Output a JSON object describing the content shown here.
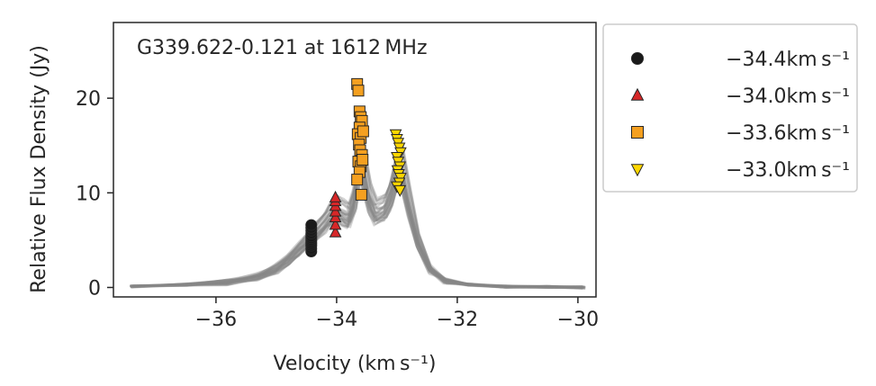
{
  "chart_data": {
    "type": "scatter",
    "title": "G339.622-0.121 at 1612 MHz",
    "xlabel": "Velocity (km s⁻¹)",
    "ylabel": "Relative Flux Density (Jy)",
    "xlim": [
      -37.7,
      -29.7
    ],
    "ylim": [
      -1.0,
      28.0
    ],
    "xticks": [
      -36,
      -34,
      -32,
      -30
    ],
    "xtick_labels": [
      "−36",
      "−34",
      "−32",
      "−30"
    ],
    "yticks": [
      0,
      10,
      20
    ],
    "ytick_labels": [
      "0",
      "10",
      "20"
    ],
    "grid": false,
    "legend_position": "outside-right",
    "spectra": {
      "color": "#888888",
      "description_count": 30,
      "velocity": [
        -37.4,
        -36.5,
        -35.8,
        -35.3,
        -35.0,
        -34.8,
        -34.6,
        -34.4,
        -34.2,
        -34.1,
        -34.0,
        -33.9,
        -33.8,
        -33.7,
        -33.62,
        -33.55,
        -33.45,
        -33.35,
        -33.2,
        -33.1,
        -33.0,
        -32.92,
        -32.8,
        -32.65,
        -32.45,
        -32.2,
        -31.8,
        -31.2,
        -30.5,
        -29.9
      ],
      "flux": [
        0.1,
        0.3,
        0.6,
        1.2,
        2.0,
        3.0,
        4.2,
        5.6,
        7.0,
        7.8,
        8.3,
        8.0,
        7.6,
        9.5,
        14.0,
        12.5,
        9.5,
        8.0,
        8.5,
        10.0,
        12.5,
        12.8,
        9.0,
        5.0,
        2.0,
        0.8,
        0.3,
        0.1,
        0.05,
        0.0
      ]
    },
    "series": [
      {
        "name": "−34.4km s⁻¹",
        "marker": "circle",
        "color": "#1a1a1a",
        "x": [
          -34.42,
          -34.42,
          -34.42,
          -34.42,
          -34.42,
          -34.42,
          -34.42,
          -34.42,
          -34.42,
          -34.42,
          -34.42,
          -34.42
        ],
        "values": [
          3.8,
          4.1,
          4.4,
          4.6,
          4.8,
          5.0,
          5.2,
          5.4,
          5.7,
          6.0,
          6.3,
          6.6
        ]
      },
      {
        "name": "−34.0km s⁻¹",
        "marker": "triangle-up",
        "color": "#d62728",
        "x": [
          -34.02,
          -34.02,
          -34.02,
          -34.02,
          -34.02,
          -34.02,
          -34.02
        ],
        "values": [
          5.8,
          6.6,
          7.4,
          8.0,
          8.6,
          9.1,
          9.5
        ]
      },
      {
        "name": "−33.6km s⁻¹",
        "marker": "square",
        "color": "#f5a020",
        "x": [
          -33.66,
          -33.64,
          -33.62,
          -33.6,
          -33.58,
          -33.62,
          -33.65,
          -33.6,
          -33.56,
          -33.63,
          -33.61,
          -33.58,
          -33.64,
          -33.6,
          -33.57,
          -33.62,
          -33.66,
          -33.59
        ],
        "values": [
          21.5,
          20.8,
          18.6,
          18.0,
          17.6,
          16.9,
          16.2,
          15.8,
          16.5,
          15.1,
          14.5,
          14.0,
          13.3,
          12.8,
          13.5,
          12.2,
          11.4,
          9.8
        ]
      },
      {
        "name": "−33.0km s⁻¹",
        "marker": "triangle-down",
        "color": "#ffd700",
        "x": [
          -33.02,
          -33.0,
          -32.98,
          -32.96,
          -32.94,
          -33.0,
          -32.98,
          -32.95,
          -32.99,
          -32.97,
          -32.94,
          -32.96,
          -33.0,
          -32.95
        ],
        "values": [
          16.2,
          15.7,
          15.3,
          14.8,
          14.3,
          13.8,
          13.3,
          12.8,
          12.4,
          12.0,
          11.6,
          11.1,
          10.7,
          10.3
        ]
      }
    ]
  }
}
